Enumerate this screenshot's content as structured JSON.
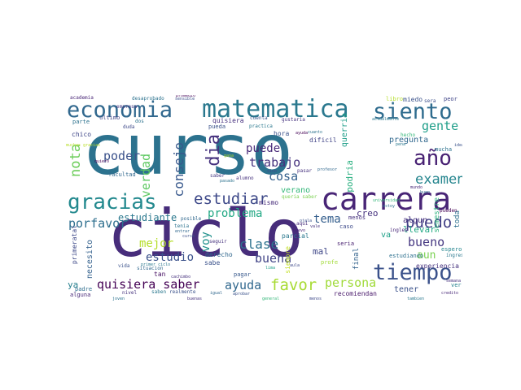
{
  "words": [
    {
      "text": "curso",
      "color": "#2c728e"
    },
    {
      "text": "ciclo",
      "color": "#472d7b"
    },
    {
      "text": "carrera",
      "color": "#482576"
    },
    {
      "text": "matematica",
      "color": "#2a788e"
    },
    {
      "text": "economia",
      "color": "#31688e"
    },
    {
      "text": "siento",
      "color": "#2f6c8e"
    },
    {
      "text": "tiempo",
      "color": "#3b528b"
    },
    {
      "text": "gracias",
      "color": "#23898e"
    },
    {
      "text": "año",
      "color": "#482173"
    },
    {
      "text": "estudiar",
      "color": "#3e4989"
    },
    {
      "text": "examen",
      "color": "#25858e"
    },
    {
      "text": "puedo",
      "color": "#424086"
    },
    {
      "text": "favor",
      "color": "#a8db34"
    },
    {
      "text": "gente",
      "color": "#1f9e89"
    },
    {
      "text": "poder",
      "color": "#3b528b"
    },
    {
      "text": "consejo",
      "color": "#38588c"
    },
    {
      "text": "verdad",
      "color": "#5ec962"
    },
    {
      "text": "dia",
      "color": "#46327e"
    },
    {
      "text": "nota",
      "color": "#6ccd5a"
    },
    {
      "text": "puede",
      "color": "#482878"
    },
    {
      "text": "trabajo",
      "color": "#46327e"
    },
    {
      "text": "cosa",
      "color": "#35608d"
    },
    {
      "text": "problema",
      "color": "#22a884"
    },
    {
      "text": "quisiera saber",
      "color": "#440154"
    },
    {
      "text": "ayuda",
      "color": "#31688e"
    },
    {
      "text": "persona",
      "color": "#a0da39"
    },
    {
      "text": "porfavor",
      "color": "#2e6f8e"
    },
    {
      "text": "estudiante",
      "color": "#2a788e"
    },
    {
      "text": "mejor",
      "color": "#b5de2b"
    },
    {
      "text": "estudio",
      "color": "#3b528b"
    },
    {
      "text": "clase",
      "color": "#2c728e"
    },
    {
      "text": "buena",
      "color": "#414487"
    },
    {
      "text": "tema",
      "color": "#355f8d"
    },
    {
      "text": "bueno",
      "color": "#453781"
    },
    {
      "text": "aun",
      "color": "#7ad151"
    },
    {
      "text": "voy",
      "color": "#21918c"
    },
    {
      "text": "verano",
      "color": "#35b779"
    },
    {
      "text": "creo",
      "color": "#46327e"
    },
    {
      "text": "llevar",
      "color": "#22a884"
    },
    {
      "text": "pregunta",
      "color": "#31688e"
    },
    {
      "text": "podria",
      "color": "#29af7f"
    },
    {
      "text": "querria",
      "color": "#1f9e89"
    },
    {
      "text": "mal",
      "color": "#3f4788"
    },
    {
      "text": "necesito",
      "color": "#34618d"
    },
    {
      "text": "tener",
      "color": "#3b528b"
    },
    {
      "text": "algun",
      "color": "#46307e"
    },
    {
      "text": "semestre",
      "color": "#2db27d"
    },
    {
      "text": "siempre",
      "color": "#c2df23"
    },
    {
      "text": "final",
      "color": "#33638d"
    },
    {
      "text": "experiencia",
      "color": "#46327e"
    },
    {
      "text": "recomiendan",
      "color": "#48186a"
    },
    {
      "text": "ya",
      "color": "#277f8e"
    },
    {
      "text": "va",
      "color": "#1fa188"
    },
    {
      "text": "hora",
      "color": "#3b528b"
    },
    {
      "text": "dificil",
      "color": "#414487"
    },
    {
      "text": "mucha",
      "color": "#2c728e"
    },
    {
      "text": "ver",
      "color": "#26828e"
    },
    {
      "text": "parcial",
      "color": "#2a788e"
    },
    {
      "text": "primeratal",
      "color": "#3e4989"
    },
    {
      "text": "derecho",
      "color": "#31688e"
    },
    {
      "text": "toda",
      "color": "#2d708e"
    },
    {
      "text": "mismo",
      "color": "#472c7a"
    },
    {
      "text": "pagar",
      "color": "#38598c"
    },
    {
      "text": "sabe",
      "color": "#3b528b"
    },
    {
      "text": "tan",
      "color": "#471063"
    },
    {
      "text": "espero",
      "color": "#25858e"
    },
    {
      "text": "miedo",
      "color": "#3b528b"
    },
    {
      "text": "libro",
      "color": "#b5de2b"
    },
    {
      "text": "menos",
      "color": "#46327e"
    },
    {
      "text": "seria",
      "color": "#481f70"
    },
    {
      "text": "chico",
      "color": "#3f4788"
    },
    {
      "text": "ultimo",
      "color": "#414487"
    },
    {
      "text": "academia",
      "color": "#482576"
    },
    {
      "text": "empresa",
      "color": "#453781"
    },
    {
      "text": "quisiera",
      "color": "#46307e"
    },
    {
      "text": "pueda",
      "color": "#3b528b"
    },
    {
      "text": "facultad",
      "color": "#31688e"
    },
    {
      "text": "saber",
      "color": "#453882"
    },
    {
      "text": "peor",
      "color": "#404588"
    },
    {
      "text": "sera",
      "color": "#3c4f8a"
    },
    {
      "text": "alguna",
      "color": "#482878"
    },
    {
      "text": "padre",
      "color": "#2e6e8e"
    },
    {
      "text": "nivel",
      "color": "#46327e"
    },
    {
      "text": "situacion",
      "color": "#31688e"
    },
    {
      "text": "caso",
      "color": "#3e4a89"
    },
    {
      "text": "estudiando",
      "color": "#2d708e"
    },
    {
      "text": "profe",
      "color": "#a2da37"
    },
    {
      "text": "vida",
      "color": "#3b528b"
    },
    {
      "text": "aqui",
      "color": "#472c7a"
    },
    {
      "text": "seguir",
      "color": "#46327e"
    },
    {
      "text": "ingles",
      "color": "#482878"
    },
    {
      "text": "hecho",
      "color": "#35b779"
    },
    {
      "text": "posible",
      "color": "#31688e"
    },
    {
      "text": "parte",
      "color": "#2c728e"
    },
    {
      "text": "muchas gracias",
      "color": "#b8de29"
    },
    {
      "text": "alumno",
      "color": "#46327e"
    },
    {
      "text": "practica",
      "color": "#2a788e"
    },
    {
      "text": "cuenta",
      "color": "#3b528b"
    },
    {
      "text": "queria saber",
      "color": "#7ad151"
    },
    {
      "text": "pasar",
      "color": "#46327e"
    },
    {
      "text": "tenia",
      "color": "#2c728e"
    },
    {
      "text": "pueden",
      "color": "#440154"
    },
    {
      "text": "ingresar",
      "color": "#2a788e"
    },
    {
      "text": "duda",
      "color": "#3e4989"
    },
    {
      "text": "hace",
      "color": "#2a788e"
    },
    {
      "text": "dos",
      "color": "#2c728e"
    },
    {
      "text": "aprobar",
      "color": "#3b528b"
    },
    {
      "text": "semana",
      "color": "#46307e"
    },
    {
      "text": "credito",
      "color": "#482878"
    },
    {
      "text": "saben",
      "color": "#2a788e"
    },
    {
      "text": "realmente",
      "color": "#3b528b"
    },
    {
      "text": "igual",
      "color": "#31688e"
    },
    {
      "text": "desaprobado",
      "color": "#2c728e"
    },
    {
      "text": "sensible",
      "color": "#3b528b"
    },
    {
      "text": "promedio",
      "color": "#440154"
    },
    {
      "text": "gustaria",
      "color": "#46327e"
    },
    {
      "text": "actualmente",
      "color": "#2a788e"
    },
    {
      "text": "sino",
      "color": "#3e4989"
    },
    {
      "text": "pasado",
      "color": "#2c728e"
    },
    {
      "text": "gana",
      "color": "#b5de2b"
    },
    {
      "text": "pena",
      "color": "#2a788e"
    },
    {
      "text": "ojala",
      "color": "#3b528b"
    },
    {
      "text": "vale",
      "color": "#46327e"
    },
    {
      "text": "profesor",
      "color": "#31688e"
    },
    {
      "text": "universidad",
      "color": "#35b779"
    },
    {
      "text": "estoy",
      "color": "#2c728e"
    },
    {
      "text": "nuevo",
      "color": "#482576"
    },
    {
      "text": "aula",
      "color": "#3e4989"
    },
    {
      "text": "primer ciclo",
      "color": "#2a788e"
    },
    {
      "text": "entrar",
      "color": "#31688e"
    },
    {
      "text": "curso",
      "color": "#3b528b"
    },
    {
      "text": "cachimbo",
      "color": "#46327e"
    },
    {
      "text": "lima",
      "color": "#1f9e89"
    },
    {
      "text": "ayuda",
      "color": "#440154"
    },
    {
      "text": "cuanto",
      "color": "#2c728e"
    },
    {
      "text": "mundo",
      "color": "#482878"
    },
    {
      "text": "buen",
      "color": "#31688e"
    },
    {
      "text": "idea",
      "color": "#3b528b"
    },
    {
      "text": "tambien",
      "color": "#2a788e"
    },
    {
      "text": "menos",
      "color": "#3e4989"
    },
    {
      "text": "general",
      "color": "#35b779"
    },
    {
      "text": "buenas",
      "color": "#46327e"
    },
    {
      "text": "joven",
      "color": "#2c728e"
    },
    {
      "text": "quiero",
      "color": "#440154"
    }
  ]
}
